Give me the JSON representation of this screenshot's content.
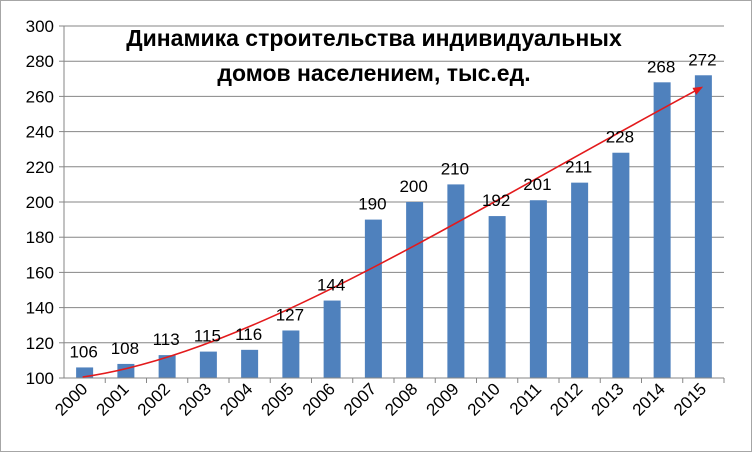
{
  "chart_data": {
    "type": "bar",
    "title_lines": [
      "Динамика строительства индивидуальных",
      "домов населением, тыс.ед."
    ],
    "categories": [
      "2000",
      "2001",
      "2002",
      "2003",
      "2004",
      "2005",
      "2006",
      "2007",
      "2008",
      "2009",
      "2010",
      "2011",
      "2012",
      "2013",
      "2014",
      "2015"
    ],
    "values": [
      106,
      108,
      113,
      115,
      116,
      127,
      144,
      190,
      200,
      210,
      192,
      201,
      211,
      228,
      268,
      272
    ],
    "xlabel": "",
    "ylabel": "",
    "ylim": [
      100,
      300
    ],
    "yticks": [
      100,
      120,
      140,
      160,
      180,
      200,
      220,
      240,
      260,
      280,
      300
    ],
    "grid": true,
    "legend": "none",
    "trend_arrow": {
      "from_category": "2000",
      "to_category": "2015",
      "shape": "curved"
    },
    "colors": {
      "bars": "#4f81bd",
      "grid": "#868686",
      "axis": "#868686",
      "trend": "#e31a1c"
    }
  }
}
